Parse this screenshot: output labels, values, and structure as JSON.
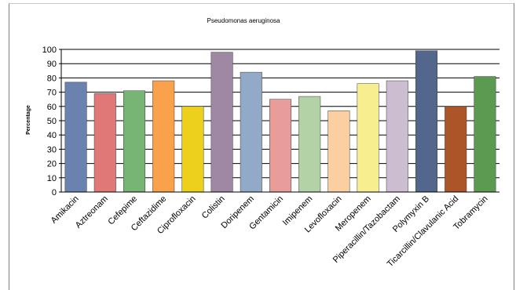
{
  "chart_data": {
    "type": "bar",
    "title": "Pseudomonas aeruginosa",
    "xlabel": "",
    "ylabel": "Percentage",
    "ylim": [
      0,
      100
    ],
    "yticks": [
      0,
      10,
      20,
      30,
      40,
      50,
      60,
      70,
      80,
      90,
      100
    ],
    "grid": true,
    "legend": "none",
    "categories": [
      "Amikacin",
      "Aztreonam",
      "Cefepime",
      "Ceftazidime",
      "Ciprofloxacin",
      "Colistin",
      "Doripenem",
      "Gentamicin",
      "Imipenem",
      "Levofloxacin",
      "Meropenem",
      "Piperacillin/Tazobactam",
      "Polymyxin B",
      "Ticarcillin/Clavulanic Acid",
      "Tobramycin"
    ],
    "values": [
      77,
      69,
      71,
      78,
      60,
      98,
      84,
      65,
      67,
      57,
      76,
      78,
      99,
      60,
      81
    ],
    "colors": [
      "#6a82b0",
      "#e07878",
      "#77b574",
      "#f9a14b",
      "#ecd01c",
      "#9f88a4",
      "#93a9c8",
      "#e89d9b",
      "#b3d2a6",
      "#fbcf9f",
      "#f6ee8f",
      "#cdbdd0",
      "#53668c",
      "#ab5528",
      "#5b9a50"
    ]
  }
}
